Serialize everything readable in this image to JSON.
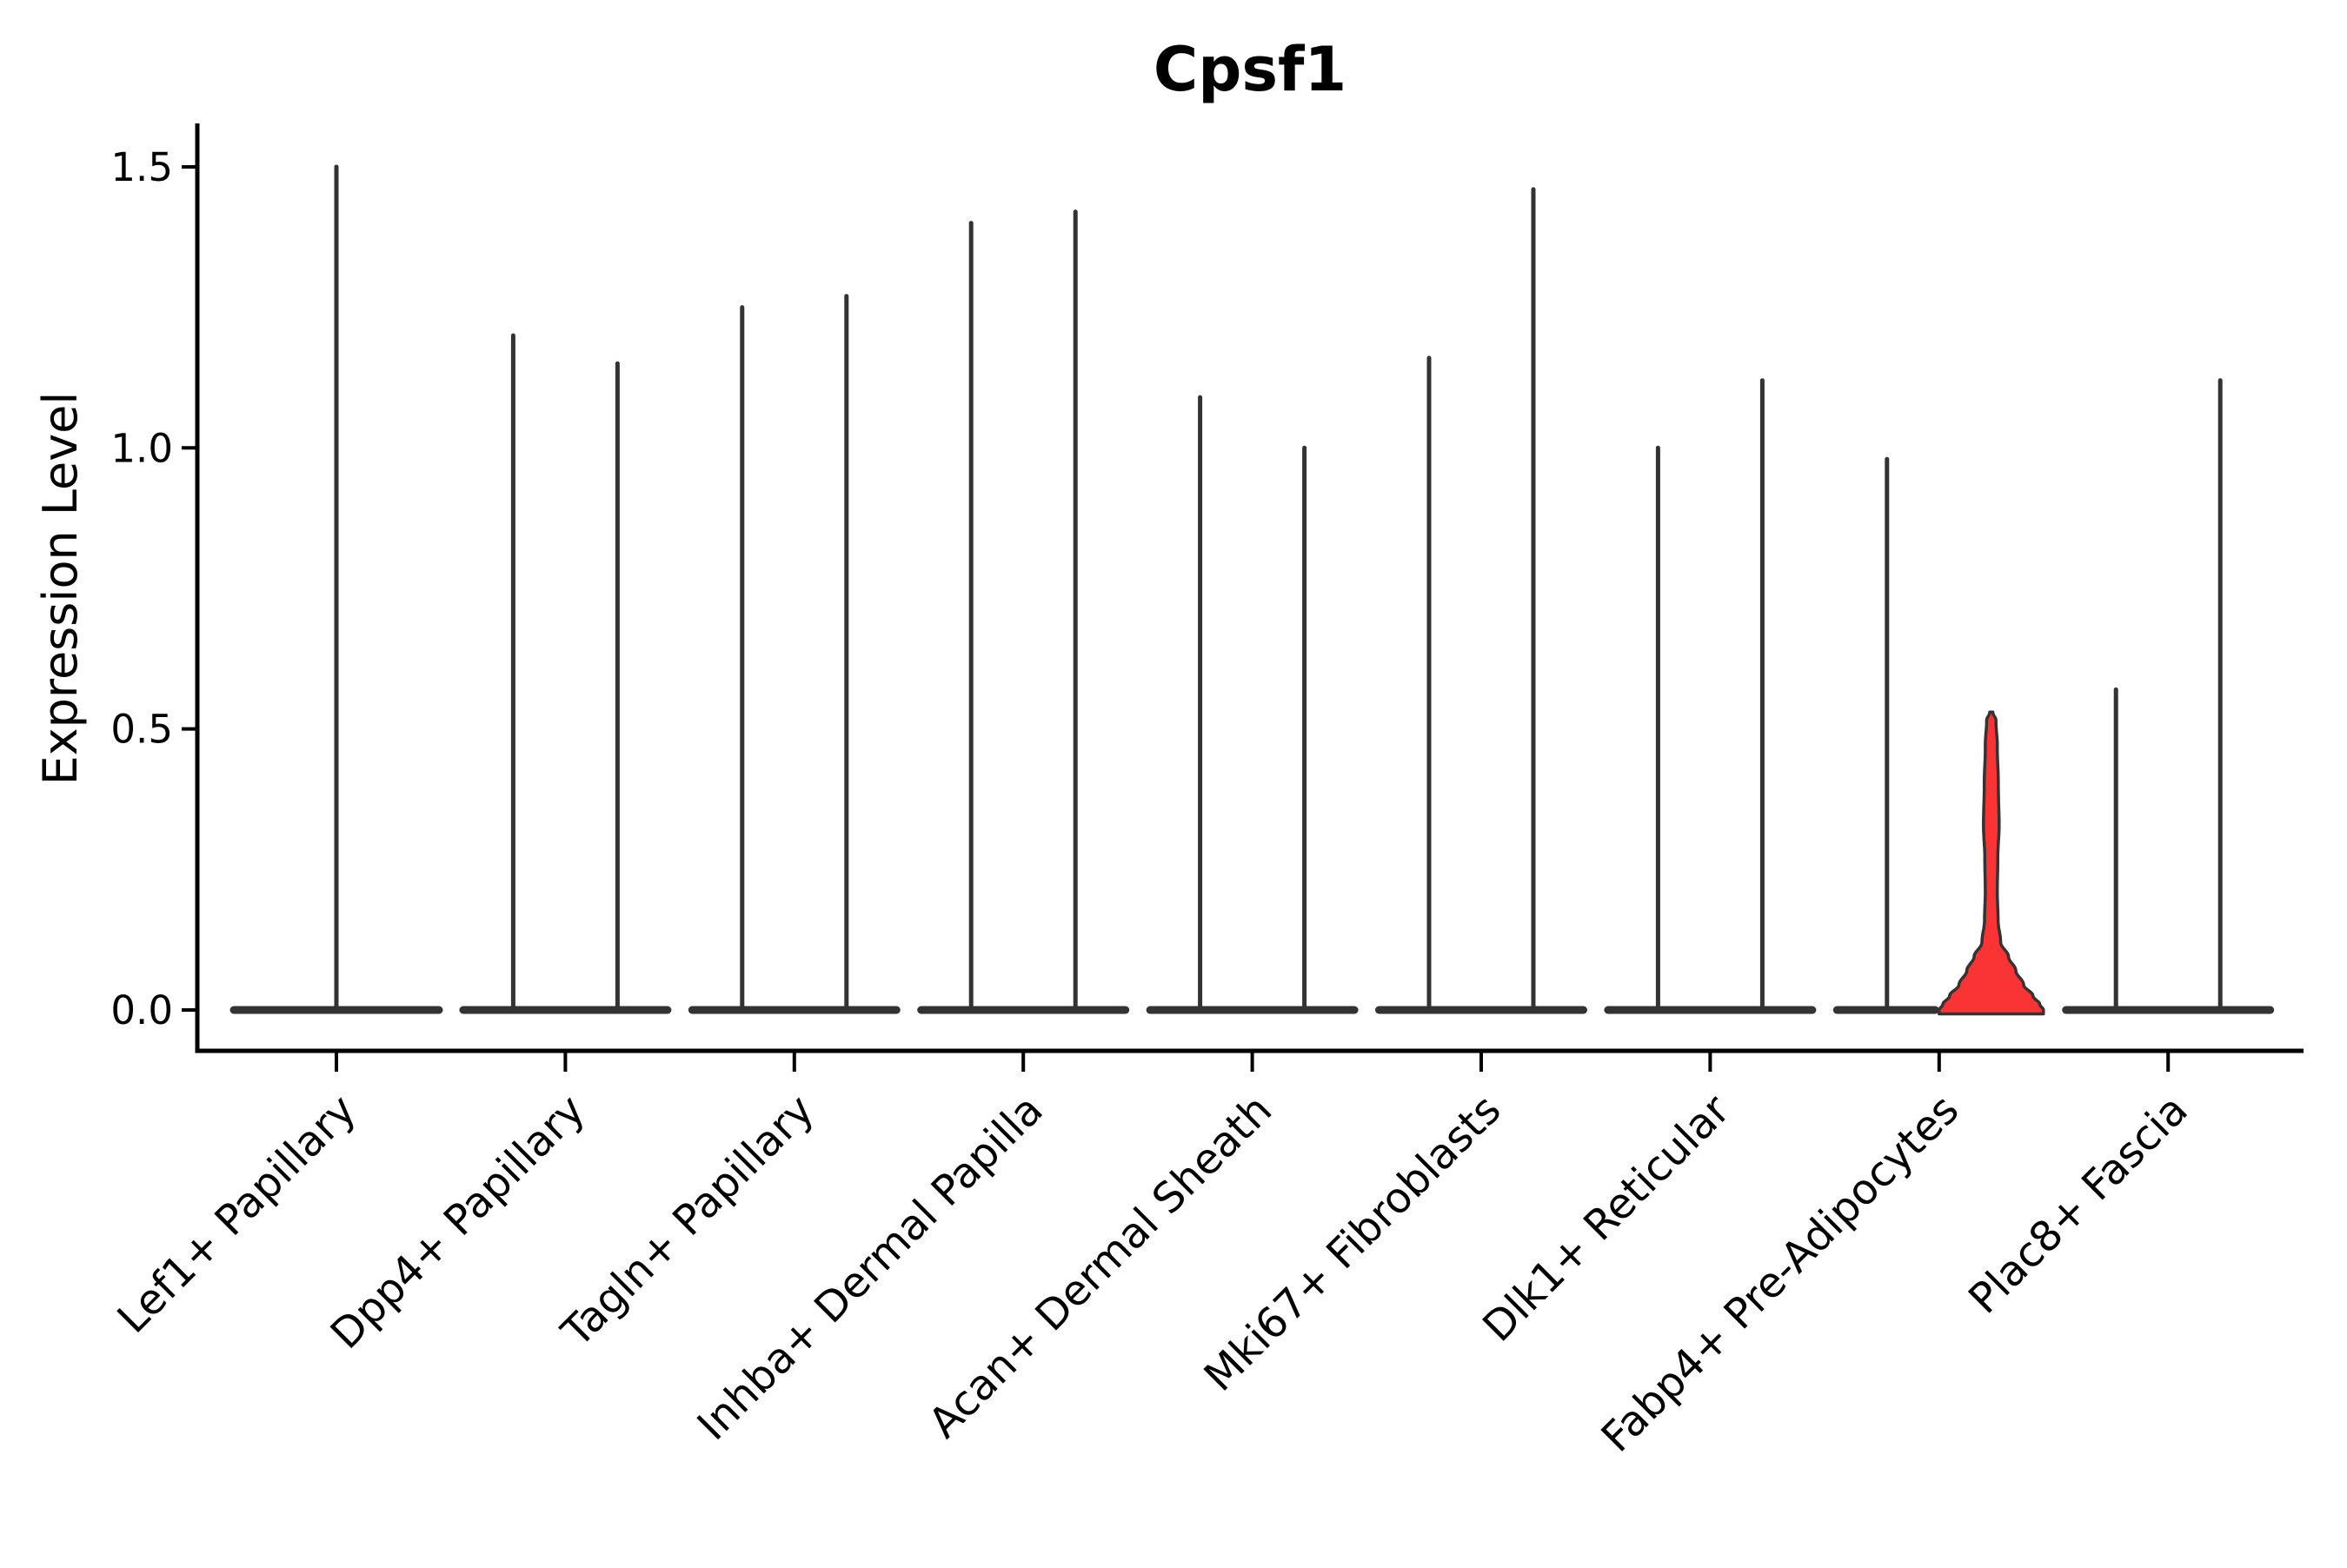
{
  "figure": {
    "title": "Cpsf1",
    "ylabel": "Expression Level"
  },
  "chart_data": {
    "type": "violin",
    "title": "Cpsf1",
    "xlabel": "",
    "ylabel": "Expression Level",
    "ylim": [
      -0.073,
      1.58
    ],
    "yticks": [
      0.0,
      0.5,
      1.0,
      1.5
    ],
    "ytick_labels": [
      "0.0",
      "0.5",
      "1.0",
      "1.5"
    ],
    "grid": false,
    "legend_position": "none",
    "colors": {
      "violin_outline": "#333333",
      "highlight_fill": "#fa3434",
      "axis": "#000000",
      "text": "#000000",
      "background": "#ffffff"
    },
    "categories": [
      {
        "label": "Lef1+ Papillary",
        "violins": [
          {
            "max": 1.5,
            "highlighted": false
          }
        ]
      },
      {
        "label": "Dpp4+ Papillary",
        "violins": [
          {
            "max": 1.2,
            "highlighted": false
          },
          {
            "max": 1.15,
            "highlighted": false
          }
        ]
      },
      {
        "label": "Tagln+ Papillary",
        "violins": [
          {
            "max": 1.25,
            "highlighted": false
          },
          {
            "max": 1.27,
            "highlighted": false
          }
        ]
      },
      {
        "label": "Inhba+ Dermal Papilla",
        "violins": [
          {
            "max": 1.4,
            "highlighted": false
          },
          {
            "max": 1.42,
            "highlighted": false
          }
        ]
      },
      {
        "label": "Acan+ Dermal Sheath",
        "violins": [
          {
            "max": 1.09,
            "highlighted": false
          },
          {
            "max": 1.0,
            "highlighted": false
          }
        ]
      },
      {
        "label": "Mki67+ Fibroblasts",
        "violins": [
          {
            "max": 1.16,
            "highlighted": false
          },
          {
            "max": 1.46,
            "highlighted": false
          }
        ]
      },
      {
        "label": "Dlk1+ Reticular",
        "violins": [
          {
            "max": 1.0,
            "highlighted": false
          },
          {
            "max": 1.12,
            "highlighted": false
          }
        ]
      },
      {
        "label": "Fabp4+ Pre-Adipocytes",
        "violins": [
          {
            "max": 0.98,
            "highlighted": false
          },
          {
            "max": 0.53,
            "highlighted": true,
            "profile": [
              {
                "v": 0.53,
                "w": 0.03
              },
              {
                "v": 0.515,
                "w": 0.09
              },
              {
                "v": 0.47,
                "w": 0.115
              },
              {
                "v": 0.4,
                "w": 0.135
              },
              {
                "v": 0.33,
                "w": 0.15
              },
              {
                "v": 0.27,
                "w": 0.125
              },
              {
                "v": 0.21,
                "w": 0.115
              },
              {
                "v": 0.16,
                "w": 0.13
              },
              {
                "v": 0.12,
                "w": 0.18
              },
              {
                "v": 0.095,
                "w": 0.33
              },
              {
                "v": 0.07,
                "w": 0.47
              },
              {
                "v": 0.045,
                "w": 0.62
              },
              {
                "v": 0.025,
                "w": 0.8
              },
              {
                "v": 0.01,
                "w": 0.93
              },
              {
                "v": 0.0,
                "w": 1.0
              }
            ]
          }
        ]
      },
      {
        "label": "Plac8+ Fascia",
        "violins": [
          {
            "max": 0.57,
            "highlighted": false
          },
          {
            "max": 1.12,
            "highlighted": false
          }
        ]
      }
    ]
  }
}
